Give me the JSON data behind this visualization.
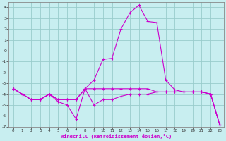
{
  "xlabel": "Windchill (Refroidissement éolien,°C)",
  "background_color": "#c8eef0",
  "grid_color": "#99cccc",
  "line_color": "#cc00cc",
  "hours": [
    0,
    1,
    2,
    3,
    4,
    5,
    6,
    7,
    8,
    9,
    10,
    11,
    12,
    13,
    14,
    15,
    16,
    17,
    18,
    19,
    20,
    21,
    22,
    23
  ],
  "line1": [
    -3.5,
    -4.0,
    -4.5,
    -4.5,
    -4.0,
    -4.5,
    -4.5,
    -4.5,
    -3.5,
    -3.5,
    -3.5,
    -3.5,
    -3.5,
    -3.5,
    -3.5,
    -3.5,
    -3.8,
    -3.8,
    -3.8,
    -3.8,
    -3.8,
    -3.8,
    -4.0,
    -6.8
  ],
  "line2": [
    -3.5,
    -4.0,
    -4.5,
    -4.5,
    -4.0,
    -4.5,
    -4.5,
    -4.5,
    -3.5,
    -2.7,
    -0.8,
    -0.7,
    2.0,
    3.5,
    4.2,
    2.7,
    2.6,
    -2.7,
    -3.6,
    -3.8,
    -3.8,
    -3.8,
    -4.0,
    -6.8
  ],
  "line3": [
    -3.5,
    -4.0,
    -4.5,
    -4.5,
    -4.0,
    -4.7,
    -5.0,
    -6.3,
    -3.5,
    -5.0,
    -4.5,
    -4.5,
    -4.2,
    -4.0,
    -4.0,
    -4.0,
    -3.8,
    -3.8,
    -3.8,
    -3.8,
    -3.8,
    -3.8,
    -4.0,
    -6.8
  ],
  "ylim": [
    -7,
    4.5
  ],
  "xlim": [
    -0.5,
    23.5
  ],
  "yticks": [
    -7,
    -6,
    -5,
    -4,
    -3,
    -2,
    -1,
    0,
    1,
    2,
    3,
    4
  ],
  "xticks": [
    0,
    1,
    2,
    3,
    4,
    5,
    6,
    7,
    8,
    9,
    10,
    11,
    12,
    13,
    14,
    15,
    16,
    17,
    18,
    19,
    20,
    21,
    22,
    23
  ]
}
